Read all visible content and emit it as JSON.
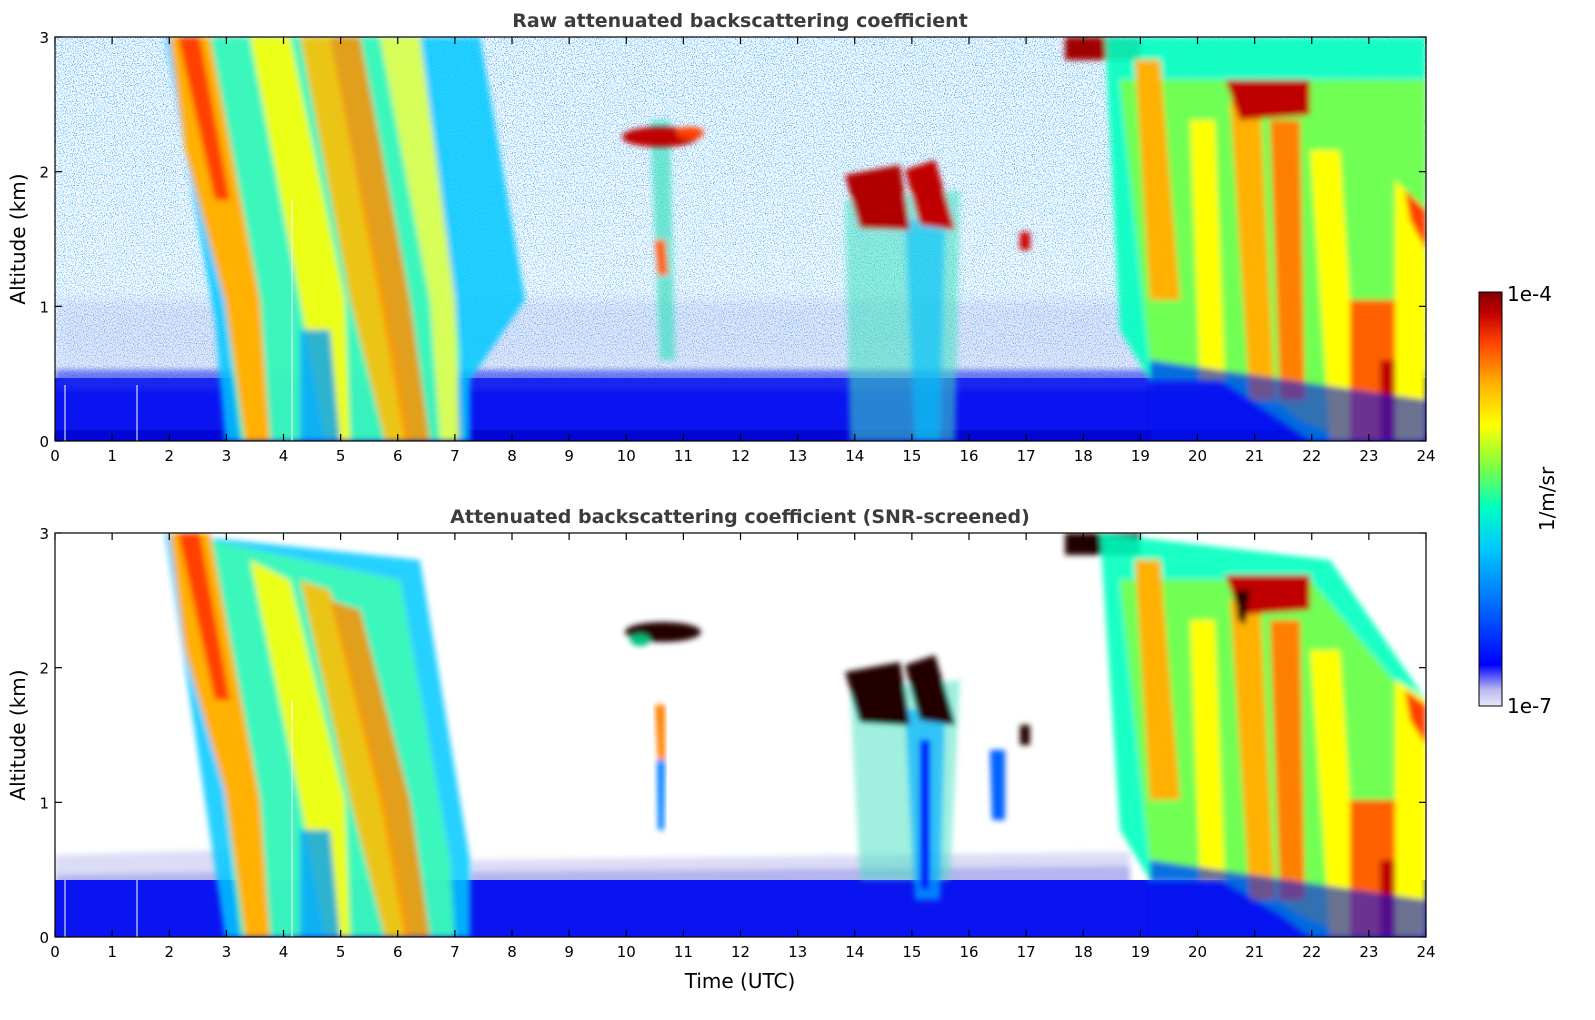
{
  "chart_data": [
    {
      "type": "heatmap",
      "title": "Raw attenuated backscattering coefficient",
      "xlabel": "",
      "ylabel": "Altitude (km)",
      "xlim": [
        0,
        24
      ],
      "ylim": [
        0,
        3
      ],
      "xticks": [
        "0",
        "1",
        "2",
        "3",
        "4",
        "5",
        "6",
        "7",
        "8",
        "9",
        "10",
        "11",
        "12",
        "13",
        "14",
        "15",
        "16",
        "17",
        "18",
        "19",
        "20",
        "21",
        "22",
        "23",
        "24"
      ],
      "yticks": [
        "0",
        "1",
        "2",
        "3"
      ],
      "features": [
        {
          "name": "boundary layer",
          "x_range": [
            0,
            24
          ],
          "top_km": 0.4
        },
        {
          "name": "descending precipitation streaks",
          "x_range": [
            2.0,
            7.3
          ],
          "top_km": 3.0
        },
        {
          "name": "cloud",
          "x_range": [
            10.0,
            11.4
          ],
          "alt_km": [
            2.1,
            2.35
          ]
        },
        {
          "name": "cloud",
          "x_range": [
            13.7,
            15.8
          ],
          "alt_km": [
            1.5,
            2.05
          ]
        },
        {
          "name": "cloud above 2.7 km",
          "x_range": [
            17.8,
            19.0
          ],
          "alt_km": [
            2.8,
            3.0
          ]
        },
        {
          "name": "precipitation streaks",
          "x_range": [
            18.8,
            24
          ],
          "top_km": 3.0
        },
        {
          "name": "cloud",
          "x_range": [
            20.5,
            22.0
          ],
          "alt_km": [
            2.4,
            2.7
          ]
        }
      ]
    },
    {
      "type": "heatmap",
      "title": "Attenuated backscattering coefficient (SNR-screened)",
      "xlabel": "Time (UTC)",
      "ylabel": "Altitude (km)",
      "xlim": [
        0,
        24
      ],
      "ylim": [
        0,
        3
      ],
      "xticks": [
        "0",
        "1",
        "2",
        "3",
        "4",
        "5",
        "6",
        "7",
        "8",
        "9",
        "10",
        "11",
        "12",
        "13",
        "14",
        "15",
        "16",
        "17",
        "18",
        "19",
        "20",
        "21",
        "22",
        "23",
        "24"
      ],
      "yticks": [
        "0",
        "1",
        "2",
        "3"
      ],
      "features": [
        {
          "name": "boundary layer",
          "x_range": [
            0,
            24
          ],
          "top_km": 0.5
        },
        {
          "name": "descending precipitation streaks",
          "x_range": [
            2.0,
            7.3
          ],
          "top_km": 3.0
        },
        {
          "name": "cloud",
          "x_range": [
            10.0,
            11.4
          ],
          "alt_km": [
            2.1,
            2.35
          ]
        },
        {
          "name": "cloud",
          "x_range": [
            13.7,
            15.8
          ],
          "alt_km": [
            1.5,
            2.05
          ]
        },
        {
          "name": "precipitation streaks",
          "x_range": [
            18.8,
            24
          ],
          "top_km": 3.0
        }
      ]
    }
  ],
  "colorbar": {
    "label": "1/m/sr",
    "max_label": "1e-4",
    "min_label": "1e-7",
    "scale": "log",
    "range": [
      1e-07,
      0.0001
    ],
    "colormap": [
      "#e8e8f8",
      "#b8b8f0",
      "#0000ff",
      "#0070ff",
      "#00c8ff",
      "#00ffc0",
      "#80ff40",
      "#ffff00",
      "#ffb000",
      "#ff4000",
      "#c00000",
      "#800000"
    ]
  }
}
